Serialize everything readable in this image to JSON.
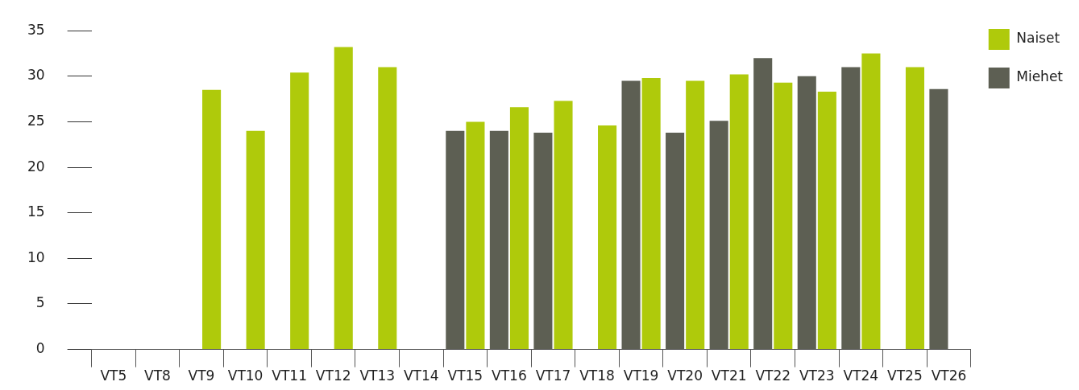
{
  "chart_data": {
    "type": "bar",
    "categories": [
      "VT5",
      "VT8",
      "VT9",
      "VT10",
      "VT11",
      "VT12",
      "VT13",
      "VT14",
      "VT15",
      "VT16",
      "VT17",
      "VT18",
      "VT19",
      "VT20",
      "VT21",
      "VT22",
      "VT23",
      "VT24",
      "VT25",
      "VT26"
    ],
    "series": [
      {
        "name": "Miehet",
        "color": "#5d5f53",
        "values": [
          null,
          null,
          null,
          null,
          null,
          null,
          null,
          null,
          24.0,
          24.0,
          23.8,
          null,
          29.5,
          23.8,
          25.1,
          32.0,
          30.0,
          31.0,
          null,
          28.6
        ]
      },
      {
        "name": "Naiset",
        "color": "#afca0b",
        "values": [
          null,
          null,
          28.5,
          24.0,
          30.4,
          33.2,
          31.0,
          null,
          25.0,
          26.6,
          27.3,
          24.6,
          29.8,
          29.5,
          30.2,
          29.3,
          28.3,
          32.5,
          31.0,
          null
        ]
      }
    ],
    "ylim": [
      0,
      35
    ],
    "yticks": [
      0,
      5,
      10,
      15,
      20,
      25,
      30,
      35
    ],
    "grid": false,
    "legend": "top right"
  }
}
